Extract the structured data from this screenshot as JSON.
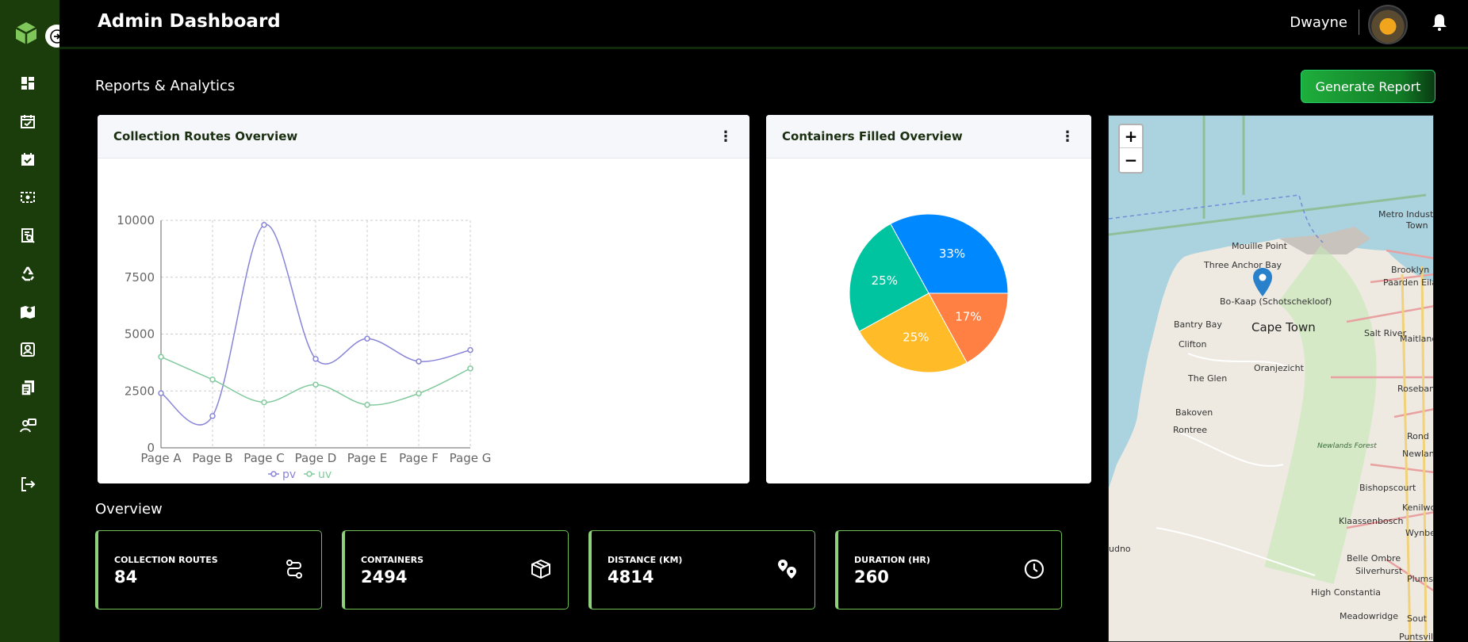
{
  "header": {
    "title": "Admin Dashboard",
    "user_name": "Dwayne"
  },
  "page": {
    "section_title": "Reports & Analytics",
    "generate_label": "Generate Report",
    "overview_title": "Overview"
  },
  "line_card": {
    "title": "Collection Routes Overview"
  },
  "pie_card": {
    "title": "Containers Filled Overview"
  },
  "sidebar": {
    "icons": [
      "dashboard-icon",
      "schedule-icon",
      "calendar-check-icon",
      "route-icon",
      "report-search-icon",
      "recycle-icon",
      "map-icon",
      "contact-icon",
      "documents-icon",
      "feedback-icon",
      "logout-icon"
    ]
  },
  "stats": [
    {
      "label": "COLLECTION ROUTES",
      "value": "84",
      "icon": "route-icon"
    },
    {
      "label": "CONTAINERS",
      "value": "2494",
      "icon": "box-icon"
    },
    {
      "label": "DISTANCE (KM)",
      "value": "4814",
      "icon": "location-pins-icon"
    },
    {
      "label": "DURATION (HR)",
      "value": "260",
      "icon": "clock-icon"
    }
  ],
  "map": {
    "zoom_in": "+",
    "zoom_out": "−",
    "labels": [
      "Mouille Point",
      "Three Anchor Bay",
      "Bo-Kaap (Schotschekloof)",
      "Bantry Bay",
      "Cape Town",
      "Salt River",
      "Clifton",
      "Oranjezicht",
      "The Glen",
      "Bakoven",
      "Rontree",
      "Rosebank",
      "Newlands",
      "Bishopscourt",
      "Kenilworth",
      "Klaassenbosch",
      "Wynberg",
      "Belle Ombre",
      "Silverhurst",
      "High Constantia",
      "Plumstead",
      "Meadowridge",
      "Puntsville",
      "Metro Industria",
      "Paarden Eiland",
      "Brooklyn",
      "Maitland",
      "udno",
      "Newlands Forest",
      "Town",
      "Rond",
      "Sout"
    ]
  },
  "colors": {
    "sidebar": "#1b3d0c",
    "pv": "#8884d8",
    "uv": "#82ca9d",
    "accent": "#1fae3d"
  },
  "chart_data": [
    {
      "type": "line",
      "categories": [
        "Page A",
        "Page B",
        "Page C",
        "Page D",
        "Page E",
        "Page F",
        "Page G"
      ],
      "series": [
        {
          "name": "pv",
          "values": [
            2400,
            1398,
            9800,
            3908,
            4800,
            3800,
            4300
          ]
        },
        {
          "name": "uv",
          "values": [
            4000,
            3000,
            2000,
            2780,
            1890,
            2390,
            3490
          ]
        }
      ],
      "y_ticks": [
        "0",
        "2500",
        "5000",
        "7500",
        "10000"
      ],
      "ylim": [
        0,
        10000
      ],
      "grid": true,
      "legend": "bottom"
    },
    {
      "type": "pie",
      "slices": [
        {
          "label": "33%",
          "value": 33,
          "color": "#0088fe"
        },
        {
          "label": "17%",
          "value": 17,
          "color": "#ff8042"
        },
        {
          "label": "25%",
          "value": 25,
          "color": "#ffbb28"
        },
        {
          "label": "25%",
          "value": 25,
          "color": "#00c49f"
        }
      ]
    }
  ]
}
